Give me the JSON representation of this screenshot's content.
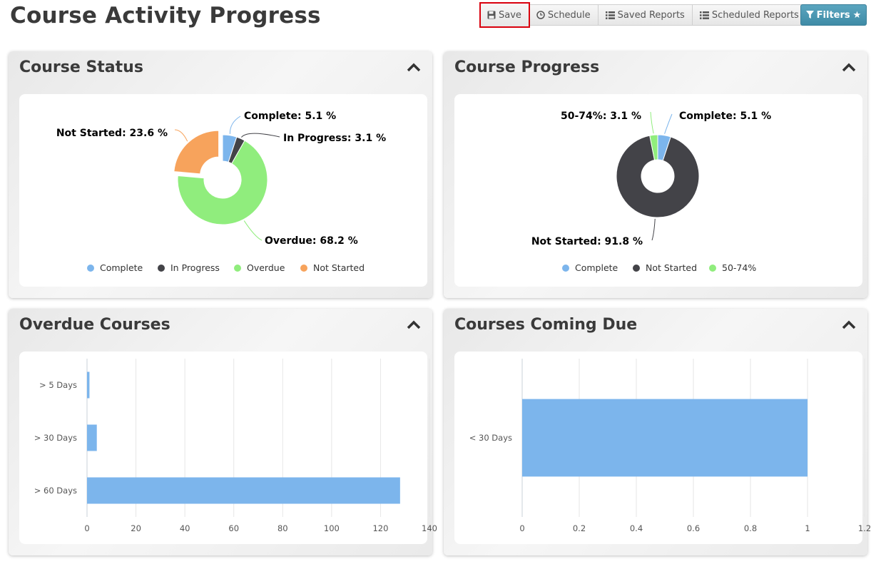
{
  "page": {
    "title": "Course Activity Progress"
  },
  "toolbar": {
    "save_label": "Save",
    "schedule_label": "Schedule",
    "saved_reports_label": "Saved Reports",
    "scheduled_reports_label": "Scheduled Reports",
    "filters_label": "Filters"
  },
  "panels": {
    "course_status": {
      "title": "Course Status"
    },
    "course_progress": {
      "title": "Course Progress"
    },
    "overdue_courses": {
      "title": "Overdue Courses"
    },
    "courses_coming_due": {
      "title": "Courses Coming Due"
    }
  },
  "chart_data": [
    {
      "type": "pie",
      "title": "Course Status",
      "slices": [
        {
          "label": "Complete",
          "value": 5.1,
          "color": "#7cb5ec",
          "data_label": "Complete: 5.1 %"
        },
        {
          "label": "In Progress",
          "value": 3.1,
          "color": "#434348",
          "data_label": "In Progress: 3.1 %"
        },
        {
          "label": "Overdue",
          "value": 68.2,
          "color": "#90ed7d",
          "data_label": "Overdue: 68.2 %"
        },
        {
          "label": "Not Started",
          "value": 23.6,
          "color": "#f7a35c",
          "data_label": "Not Started: 23.6 %"
        }
      ],
      "legend": [
        "Complete",
        "In Progress",
        "Overdue",
        "Not Started"
      ],
      "legend_position": "bottom",
      "donut": true
    },
    {
      "type": "pie",
      "title": "Course Progress",
      "slices": [
        {
          "label": "Complete",
          "value": 5.1,
          "color": "#7cb5ec",
          "data_label": "Complete: 5.1 %"
        },
        {
          "label": "Not Started",
          "value": 91.8,
          "color": "#434348",
          "data_label": "Not Started: 91.8 %"
        },
        {
          "label": "50-74%",
          "value": 3.1,
          "color": "#90ed7d",
          "data_label": "50-74%: 3.1 %"
        }
      ],
      "legend": [
        "Complete",
        "Not Started",
        "50-74%"
      ],
      "legend_position": "bottom",
      "donut": true
    },
    {
      "type": "bar",
      "orientation": "horizontal",
      "title": "Overdue Courses",
      "categories": [
        "> 5 Days",
        "> 30 Days",
        "> 60 Days"
      ],
      "values": [
        1,
        4,
        128
      ],
      "xlim": [
        0,
        140
      ],
      "x_ticks": [
        "0",
        "20",
        "40",
        "60",
        "80",
        "100",
        "120",
        "140"
      ],
      "tick_values": [
        0,
        20,
        40,
        60,
        80,
        100,
        120,
        140
      ],
      "grid": true,
      "color": "#7cb5ec"
    },
    {
      "type": "bar",
      "orientation": "horizontal",
      "title": "Courses Coming Due",
      "categories": [
        "< 30 Days"
      ],
      "values": [
        1
      ],
      "xlim": [
        0,
        1.2
      ],
      "x_ticks": [
        "0",
        "0.2",
        "0.4",
        "0.6",
        "0.8",
        "1",
        "1.2"
      ],
      "tick_values": [
        0,
        0.2,
        0.4,
        0.6,
        0.8,
        1,
        1.2
      ],
      "grid": true,
      "color": "#7cb5ec"
    }
  ]
}
